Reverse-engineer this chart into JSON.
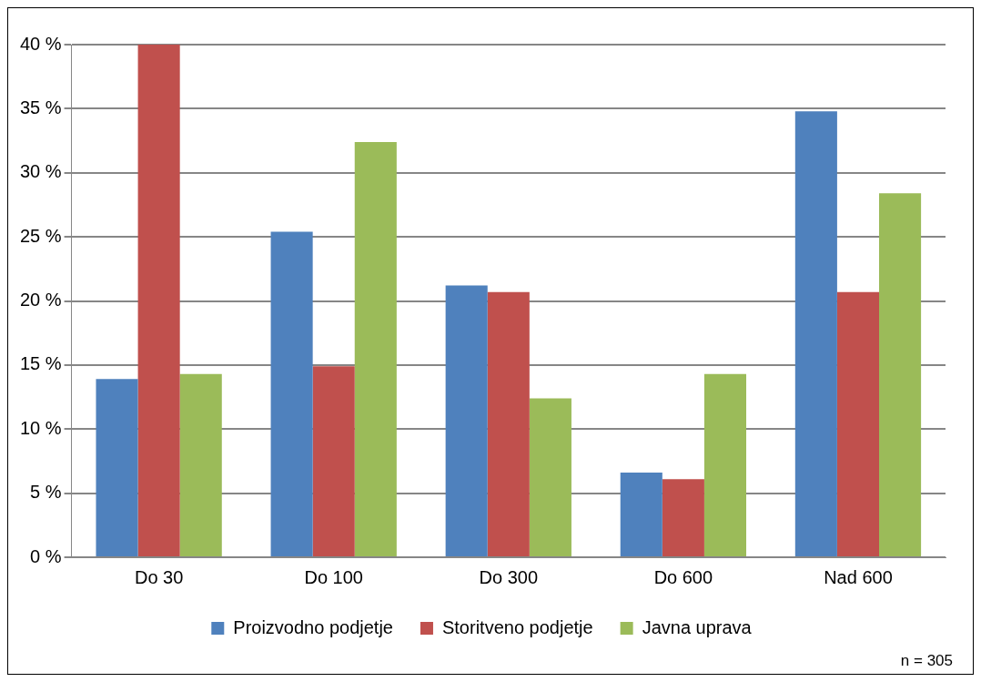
{
  "chart_data": {
    "type": "bar",
    "categories": [
      "Do 30",
      "Do 100",
      "Do 300",
      "Do 600",
      "Nad 600"
    ],
    "series": [
      {
        "name": "Proizvodno podjetje",
        "color": "#4f81bd",
        "values": [
          13.9,
          25.4,
          21.2,
          6.6,
          34.8
        ]
      },
      {
        "name": "Storitveno podjetje",
        "color": "#c0504d",
        "values": [
          40,
          14.9,
          20.7,
          6.1,
          20.7
        ]
      },
      {
        "name": "Javna uprava",
        "color": "#9bbb59",
        "values": [
          14.3,
          32.4,
          12.4,
          14.3,
          28.4
        ]
      }
    ],
    "ylim": [
      0,
      40
    ],
    "yticks": [
      {
        "value": 0,
        "label": "0 %"
      },
      {
        "value": 5,
        "label": "5 %"
      },
      {
        "value": 10,
        "label": "10 %"
      },
      {
        "value": 15,
        "label": "15 %"
      },
      {
        "value": 20,
        "label": "20 %"
      },
      {
        "value": 25,
        "label": "25 %"
      },
      {
        "value": 30,
        "label": "30 %"
      },
      {
        "value": 35,
        "label": "35 %"
      },
      {
        "value": 40,
        "label": "40 %"
      }
    ],
    "grid": "y",
    "legend": "bottom",
    "annotations": [
      "n = 305"
    ]
  }
}
